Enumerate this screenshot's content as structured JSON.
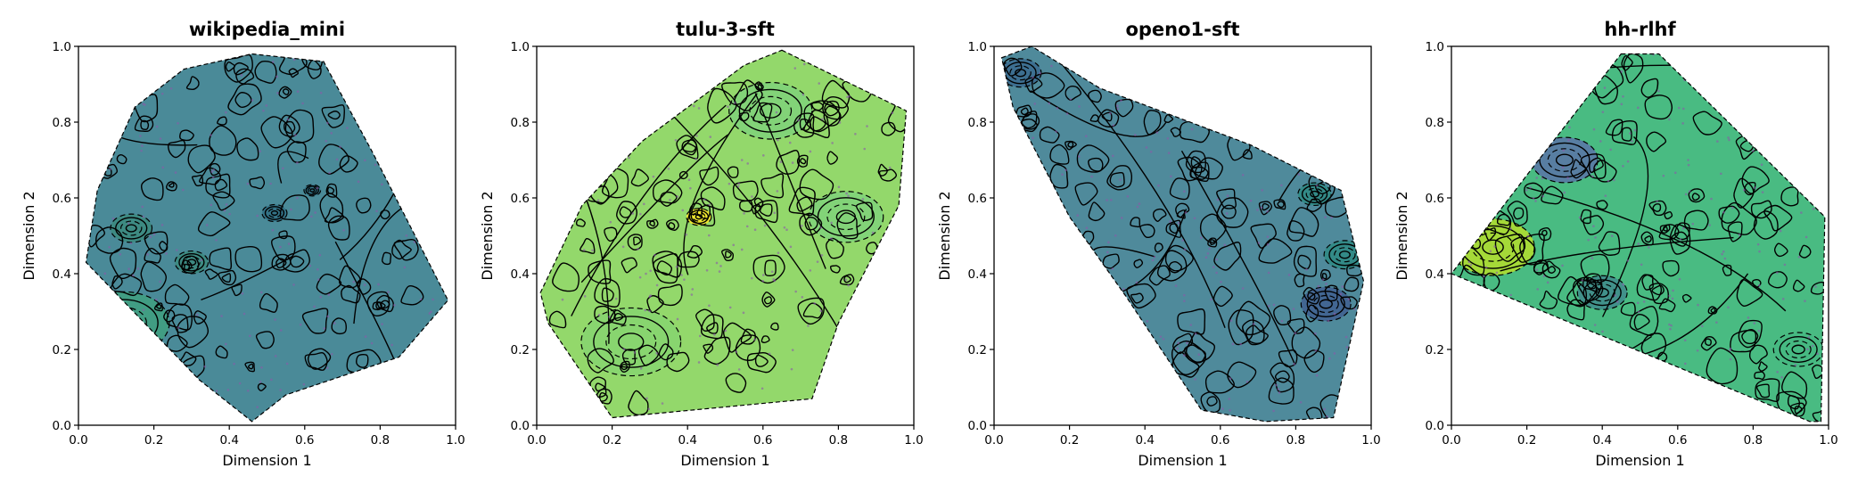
{
  "chart_data": [
    {
      "type": "contour",
      "title": "wikipedia_mini",
      "xlabel": "Dimension 1",
      "ylabel": "Dimension 2",
      "xlim": [
        0.0,
        1.0
      ],
      "ylim": [
        0.0,
        1.0
      ],
      "xticks": [
        "0.0",
        "0.2",
        "0.4",
        "0.6",
        "0.8",
        "1.0"
      ],
      "yticks": [
        "0.0",
        "0.2",
        "0.4",
        "0.6",
        "0.8",
        "1.0"
      ],
      "grid": false,
      "colormap": "viridis",
      "base_color": "#4a8a98",
      "hull": [
        [
          0.46,
          0.98
        ],
        [
          0.65,
          0.96
        ],
        [
          0.78,
          0.72
        ],
        [
          0.98,
          0.33
        ],
        [
          0.85,
          0.18
        ],
        [
          0.55,
          0.08
        ],
        [
          0.46,
          0.01
        ],
        [
          0.32,
          0.12
        ],
        [
          0.02,
          0.43
        ],
        [
          0.05,
          0.62
        ],
        [
          0.15,
          0.84
        ],
        [
          0.28,
          0.94
        ]
      ],
      "features": [
        {
          "x": 0.12,
          "y": 0.27,
          "r": 0.11,
          "color": "#3fa07f"
        },
        {
          "x": 0.3,
          "y": 0.43,
          "r": 0.04,
          "color": "#3b8a7e"
        },
        {
          "x": 0.14,
          "y": 0.52,
          "r": 0.05,
          "color": "#3b8a7e"
        },
        {
          "x": 0.52,
          "y": 0.56,
          "r": 0.03,
          "color": "#2f6f84"
        },
        {
          "x": 0.62,
          "y": 0.62,
          "r": 0.02,
          "color": "#2f6f84"
        }
      ]
    },
    {
      "type": "contour",
      "title": "tulu-3-sft",
      "xlabel": "Dimension 1",
      "ylabel": "Dimension 2",
      "xlim": [
        0.0,
        1.0
      ],
      "ylim": [
        0.0,
        1.0
      ],
      "xticks": [
        "0.0",
        "0.2",
        "0.4",
        "0.6",
        "0.8",
        "1.0"
      ],
      "yticks": [
        "0.0",
        "0.2",
        "0.4",
        "0.6",
        "0.8",
        "1.0"
      ],
      "grid": false,
      "colormap": "viridis",
      "base_color": "#93d86b",
      "hull": [
        [
          0.65,
          0.99
        ],
        [
          0.98,
          0.83
        ],
        [
          0.96,
          0.58
        ],
        [
          0.8,
          0.27
        ],
        [
          0.73,
          0.07
        ],
        [
          0.2,
          0.02
        ],
        [
          0.03,
          0.27
        ],
        [
          0.01,
          0.35
        ],
        [
          0.12,
          0.58
        ],
        [
          0.28,
          0.75
        ],
        [
          0.55,
          0.95
        ]
      ],
      "features": [
        {
          "x": 0.43,
          "y": 0.55,
          "r": 0.03,
          "color": "#fde725"
        },
        {
          "x": 0.62,
          "y": 0.83,
          "r": 0.1,
          "color": "#7fd27a"
        },
        {
          "x": 0.82,
          "y": 0.55,
          "r": 0.09,
          "color": "#7fd27a"
        },
        {
          "x": 0.25,
          "y": 0.22,
          "r": 0.12,
          "color": "#86d570"
        }
      ]
    },
    {
      "type": "contour",
      "title": "openo1-sft",
      "xlabel": "Dimension 1",
      "ylabel": "Dimension 2",
      "xlim": [
        0.0,
        1.0
      ],
      "ylim": [
        0.0,
        1.0
      ],
      "xticks": [
        "0.0",
        "0.2",
        "0.4",
        "0.6",
        "0.8",
        "1.0"
      ],
      "yticks": [
        "0.0",
        "0.2",
        "0.4",
        "0.6",
        "0.8",
        "1.0"
      ],
      "grid": false,
      "colormap": "viridis",
      "base_color": "#4f8a9b",
      "hull": [
        [
          0.02,
          0.97
        ],
        [
          0.1,
          1.0
        ],
        [
          0.28,
          0.89
        ],
        [
          0.68,
          0.74
        ],
        [
          0.92,
          0.62
        ],
        [
          0.98,
          0.38
        ],
        [
          0.9,
          0.02
        ],
        [
          0.72,
          0.01
        ],
        [
          0.55,
          0.04
        ],
        [
          0.35,
          0.34
        ],
        [
          0.2,
          0.55
        ],
        [
          0.05,
          0.84
        ]
      ],
      "features": [
        {
          "x": 0.07,
          "y": 0.93,
          "r": 0.05,
          "color": "#3a6a8f"
        },
        {
          "x": 0.85,
          "y": 0.61,
          "r": 0.04,
          "color": "#2e8a84"
        },
        {
          "x": 0.93,
          "y": 0.45,
          "r": 0.05,
          "color": "#2e8a84"
        },
        {
          "x": 0.88,
          "y": 0.32,
          "r": 0.06,
          "color": "#3f5f90"
        }
      ]
    },
    {
      "type": "contour",
      "title": "hh-rlhf",
      "xlabel": "Dimension 1",
      "ylabel": "Dimension 2",
      "xlim": [
        0.0,
        1.0
      ],
      "ylim": [
        0.0,
        1.0
      ],
      "xticks": [
        "0.0",
        "0.2",
        "0.4",
        "0.6",
        "0.8",
        "1.0"
      ],
      "yticks": [
        "0.0",
        "0.2",
        "0.4",
        "0.6",
        "0.8",
        "1.0"
      ],
      "grid": false,
      "colormap": "viridis",
      "base_color": "#49bb82",
      "hull": [
        [
          0.45,
          0.98
        ],
        [
          0.55,
          0.98
        ],
        [
          0.99,
          0.55
        ],
        [
          0.98,
          0.01
        ],
        [
          0.95,
          0.01
        ],
        [
          0.0,
          0.4
        ],
        [
          0.2,
          0.66
        ]
      ],
      "features": [
        {
          "x": 0.11,
          "y": 0.47,
          "r": 0.1,
          "color": "#b5de2b"
        },
        {
          "x": 0.3,
          "y": 0.7,
          "r": 0.08,
          "color": "#5a73a8"
        },
        {
          "x": 0.4,
          "y": 0.35,
          "r": 0.06,
          "color": "#3f8a8c"
        },
        {
          "x": 0.92,
          "y": 0.2,
          "r": 0.06,
          "color": "#45b883"
        }
      ]
    }
  ]
}
